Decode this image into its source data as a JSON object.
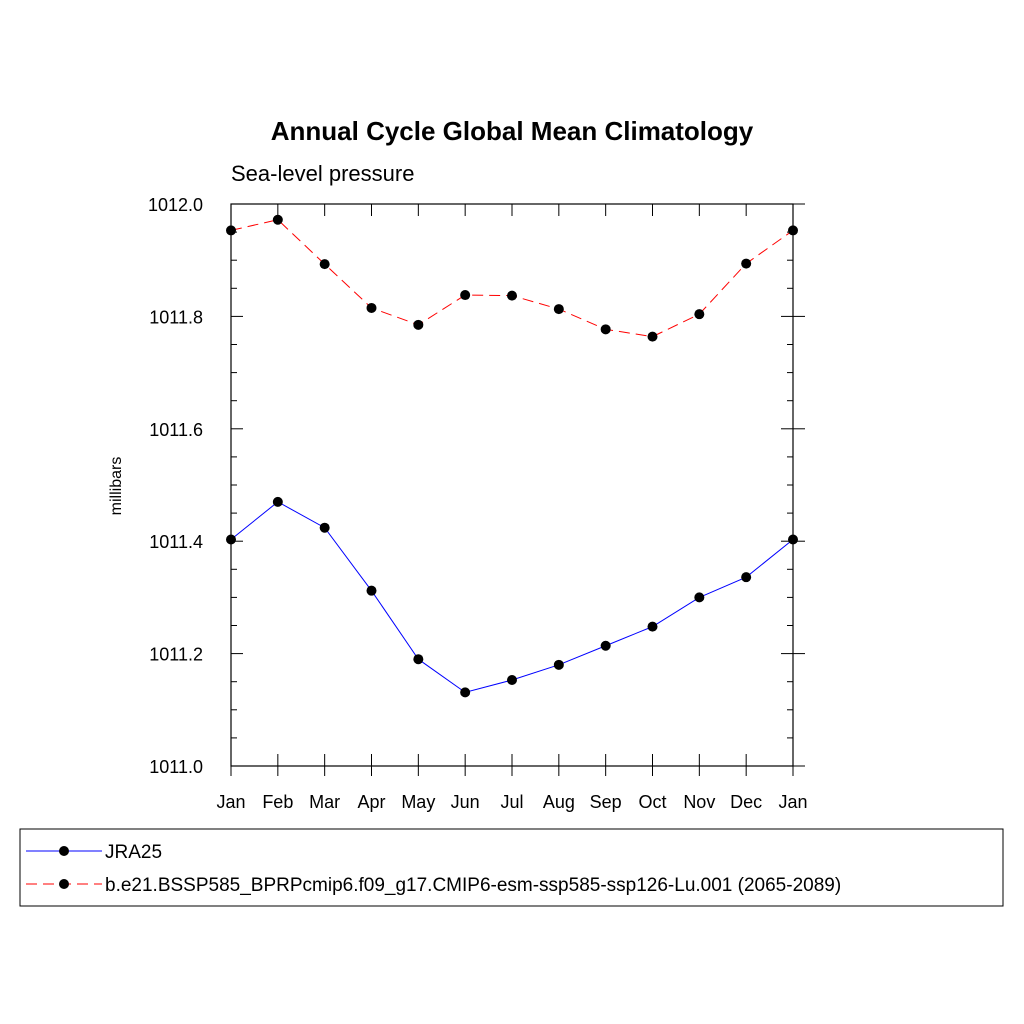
{
  "chart_data": {
    "type": "line",
    "title": "Annual Cycle Global Mean Climatology",
    "subtitle": "Sea-level pressure",
    "xlabel": "",
    "ylabel": "millibars",
    "categories": [
      "Jan",
      "Feb",
      "Mar",
      "Apr",
      "May",
      "Jun",
      "Jul",
      "Aug",
      "Sep",
      "Oct",
      "Nov",
      "Dec",
      "Jan"
    ],
    "ylim": [
      1011.0,
      1012.0
    ],
    "yticks": [
      "1011.0",
      "1011.2",
      "1011.4",
      "1011.6",
      "1011.8",
      "1012.0"
    ],
    "ytick_values": [
      1011.0,
      1011.2,
      1011.4,
      1011.6,
      1011.8,
      1012.0
    ],
    "grid": false,
    "legend_position": "bottom",
    "series": [
      {
        "name": "JRA25",
        "color": "#0000ff",
        "line_style": "solid",
        "marker": "filled-circle",
        "values": [
          1011.403,
          1011.47,
          1011.424,
          1011.312,
          1011.19,
          1011.131,
          1011.153,
          1011.18,
          1011.214,
          1011.248,
          1011.3,
          1011.336,
          1011.403
        ]
      },
      {
        "name": "b.e21.BSSP585_BPRPcmip6.f09_g17.CMIP6-esm-ssp585-ssp126-Lu.001 (2065-2089)",
        "color": "#ff0000",
        "line_style": "dashed",
        "marker": "filled-circle",
        "values": [
          1011.953,
          1011.972,
          1011.893,
          1011.815,
          1011.785,
          1011.838,
          1011.837,
          1011.813,
          1011.777,
          1011.764,
          1011.804,
          1011.894,
          1011.953
        ]
      }
    ]
  }
}
